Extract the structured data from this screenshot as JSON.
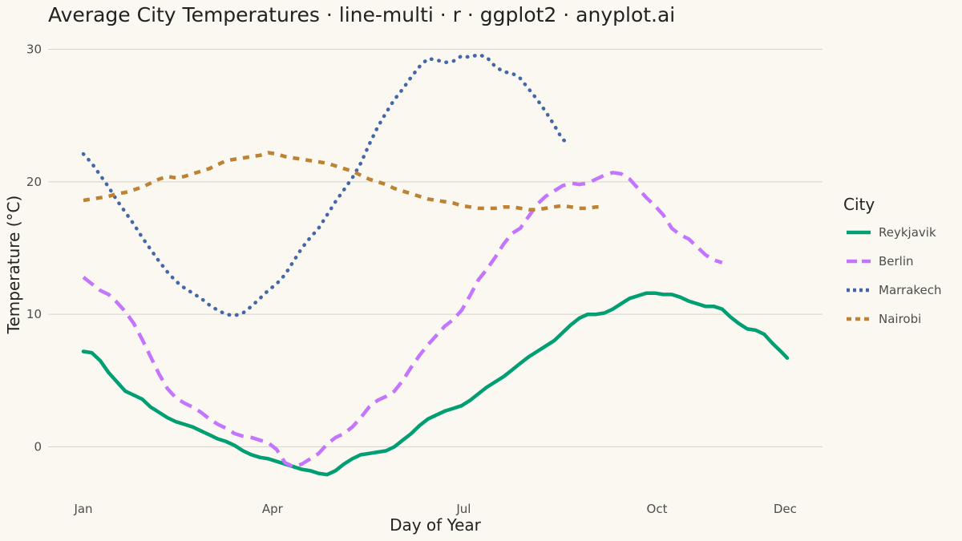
{
  "chart_data": {
    "type": "line",
    "title": "Average City Temperatures · line-multi · r · ggplot2 · anyplot.ai",
    "xlabel": "Day of Year",
    "ylabel": "Temperature (°C)",
    "xlim": [
      1,
      336
    ],
    "ylim": [
      -4,
      30.5
    ],
    "x_ticks": [
      {
        "x": 1,
        "label": "Jan"
      },
      {
        "x": 91,
        "label": "Apr"
      },
      {
        "x": 182,
        "label": "Jul"
      },
      {
        "x": 274,
        "label": "Oct"
      },
      {
        "x": 335,
        "label": "Dec"
      }
    ],
    "y_ticks": [
      0,
      10,
      20,
      30
    ],
    "grid": true,
    "legend": {
      "title": "City",
      "position": "right"
    },
    "series": [
      {
        "name": "Reykjavik",
        "color": "#009E73",
        "dash": "solid",
        "width": 4.5,
        "points": [
          [
            1,
            7.2
          ],
          [
            5,
            7.1
          ],
          [
            9,
            6.5
          ],
          [
            13,
            5.6
          ],
          [
            17,
            4.9
          ],
          [
            21,
            4.2
          ],
          [
            25,
            3.9
          ],
          [
            29,
            3.6
          ],
          [
            33,
            3.0
          ],
          [
            37,
            2.6
          ],
          [
            41,
            2.2
          ],
          [
            45,
            1.9
          ],
          [
            49,
            1.7
          ],
          [
            53,
            1.5
          ],
          [
            57,
            1.2
          ],
          [
            61,
            0.9
          ],
          [
            65,
            0.6
          ],
          [
            69,
            0.4
          ],
          [
            73,
            0.1
          ],
          [
            77,
            -0.3
          ],
          [
            81,
            -0.6
          ],
          [
            85,
            -0.8
          ],
          [
            89,
            -0.9
          ],
          [
            93,
            -1.1
          ],
          [
            97,
            -1.3
          ],
          [
            101,
            -1.5
          ],
          [
            105,
            -1.7
          ],
          [
            109,
            -1.8
          ],
          [
            113,
            -2.0
          ],
          [
            117,
            -2.1
          ],
          [
            121,
            -1.8
          ],
          [
            125,
            -1.3
          ],
          [
            129,
            -0.9
          ],
          [
            133,
            -0.6
          ],
          [
            137,
            -0.5
          ],
          [
            141,
            -0.4
          ],
          [
            145,
            -0.3
          ],
          [
            149,
            0.0
          ],
          [
            153,
            0.5
          ],
          [
            157,
            1.0
          ],
          [
            161,
            1.6
          ],
          [
            165,
            2.1
          ],
          [
            169,
            2.4
          ],
          [
            173,
            2.7
          ],
          [
            177,
            2.9
          ],
          [
            181,
            3.1
          ],
          [
            185,
            3.5
          ],
          [
            189,
            4.0
          ],
          [
            193,
            4.5
          ],
          [
            197,
            4.9
          ],
          [
            201,
            5.3
          ],
          [
            205,
            5.8
          ],
          [
            209,
            6.3
          ],
          [
            213,
            6.8
          ],
          [
            217,
            7.2
          ],
          [
            221,
            7.6
          ],
          [
            225,
            8.0
          ],
          [
            229,
            8.6
          ],
          [
            233,
            9.2
          ],
          [
            237,
            9.7
          ],
          [
            241,
            10.0
          ],
          [
            245,
            10.0
          ],
          [
            249,
            10.1
          ],
          [
            253,
            10.4
          ],
          [
            257,
            10.8
          ],
          [
            261,
            11.2
          ],
          [
            265,
            11.4
          ],
          [
            269,
            11.6
          ],
          [
            273,
            11.6
          ],
          [
            277,
            11.5
          ],
          [
            281,
            11.5
          ],
          [
            285,
            11.3
          ],
          [
            289,
            11.0
          ],
          [
            293,
            10.8
          ],
          [
            297,
            10.6
          ],
          [
            301,
            10.6
          ],
          [
            305,
            10.4
          ],
          [
            309,
            9.8
          ],
          [
            313,
            9.3
          ],
          [
            317,
            8.9
          ],
          [
            321,
            8.8
          ],
          [
            325,
            8.5
          ],
          [
            329,
            7.8
          ],
          [
            333,
            7.2
          ],
          [
            336,
            6.7
          ]
        ]
      },
      {
        "name": "Berlin",
        "color": "#C475FD",
        "dash": "dashed",
        "width": 4.5,
        "points": [
          [
            1,
            12.8
          ],
          [
            5,
            12.3
          ],
          [
            9,
            11.8
          ],
          [
            13,
            11.5
          ],
          [
            17,
            10.9
          ],
          [
            21,
            10.2
          ],
          [
            25,
            9.3
          ],
          [
            29,
            8.1
          ],
          [
            33,
            6.8
          ],
          [
            37,
            5.5
          ],
          [
            41,
            4.4
          ],
          [
            45,
            3.7
          ],
          [
            49,
            3.3
          ],
          [
            53,
            3.0
          ],
          [
            57,
            2.6
          ],
          [
            61,
            2.1
          ],
          [
            65,
            1.7
          ],
          [
            69,
            1.4
          ],
          [
            73,
            1.0
          ],
          [
            77,
            0.8
          ],
          [
            81,
            0.7
          ],
          [
            85,
            0.5
          ],
          [
            89,
            0.3
          ],
          [
            93,
            -0.2
          ],
          [
            97,
            -1.2
          ],
          [
            101,
            -1.5
          ],
          [
            105,
            -1.3
          ],
          [
            109,
            -0.9
          ],
          [
            113,
            -0.5
          ],
          [
            117,
            0.2
          ],
          [
            121,
            0.7
          ],
          [
            125,
            1.0
          ],
          [
            129,
            1.5
          ],
          [
            133,
            2.2
          ],
          [
            137,
            3.0
          ],
          [
            141,
            3.5
          ],
          [
            145,
            3.8
          ],
          [
            149,
            4.2
          ],
          [
            153,
            5.0
          ],
          [
            157,
            6.0
          ],
          [
            161,
            6.9
          ],
          [
            165,
            7.7
          ],
          [
            169,
            8.4
          ],
          [
            173,
            9.1
          ],
          [
            177,
            9.6
          ],
          [
            181,
            10.3
          ],
          [
            185,
            11.4
          ],
          [
            189,
            12.6
          ],
          [
            193,
            13.4
          ],
          [
            197,
            14.3
          ],
          [
            201,
            15.3
          ],
          [
            205,
            16.1
          ],
          [
            209,
            16.5
          ],
          [
            213,
            17.4
          ],
          [
            217,
            18.3
          ],
          [
            221,
            18.9
          ],
          [
            225,
            19.3
          ],
          [
            229,
            19.7
          ],
          [
            233,
            19.9
          ],
          [
            237,
            19.8
          ],
          [
            241,
            19.9
          ],
          [
            245,
            20.2
          ],
          [
            249,
            20.5
          ],
          [
            253,
            20.7
          ],
          [
            257,
            20.6
          ],
          [
            261,
            20.2
          ],
          [
            265,
            19.5
          ],
          [
            269,
            18.8
          ],
          [
            273,
            18.2
          ],
          [
            277,
            17.5
          ],
          [
            281,
            16.5
          ],
          [
            285,
            16.0
          ],
          [
            289,
            15.7
          ],
          [
            293,
            15.1
          ],
          [
            297,
            14.5
          ],
          [
            301,
            14.1
          ],
          [
            305,
            13.9
          ]
        ]
      },
      {
        "name": "Marrakech",
        "color": "#4467A9",
        "dash": "dotted",
        "width": 4.5,
        "points": [
          [
            1,
            22.1
          ],
          [
            5,
            21.4
          ],
          [
            9,
            20.5
          ],
          [
            13,
            19.6
          ],
          [
            17,
            18.6
          ],
          [
            21,
            17.7
          ],
          [
            25,
            16.8
          ],
          [
            29,
            15.8
          ],
          [
            33,
            14.9
          ],
          [
            37,
            14.0
          ],
          [
            41,
            13.2
          ],
          [
            45,
            12.5
          ],
          [
            49,
            12.0
          ],
          [
            53,
            11.6
          ],
          [
            57,
            11.2
          ],
          [
            61,
            10.7
          ],
          [
            65,
            10.3
          ],
          [
            69,
            10.0
          ],
          [
            73,
            9.9
          ],
          [
            77,
            10.1
          ],
          [
            81,
            10.6
          ],
          [
            85,
            11.2
          ],
          [
            89,
            11.8
          ],
          [
            93,
            12.3
          ],
          [
            97,
            13.0
          ],
          [
            101,
            14.0
          ],
          [
            105,
            15.0
          ],
          [
            109,
            15.8
          ],
          [
            113,
            16.5
          ],
          [
            117,
            17.5
          ],
          [
            121,
            18.5
          ],
          [
            125,
            19.4
          ],
          [
            129,
            20.3
          ],
          [
            133,
            21.4
          ],
          [
            137,
            22.8
          ],
          [
            141,
            24.1
          ],
          [
            145,
            25.2
          ],
          [
            149,
            26.2
          ],
          [
            153,
            27.0
          ],
          [
            157,
            27.9
          ],
          [
            161,
            28.7
          ],
          [
            165,
            29.3
          ],
          [
            169,
            29.2
          ],
          [
            173,
            29.0
          ],
          [
            177,
            29.1
          ],
          [
            181,
            29.5
          ],
          [
            185,
            29.4
          ],
          [
            189,
            29.6
          ],
          [
            193,
            29.4
          ],
          [
            197,
            28.7
          ],
          [
            201,
            28.3
          ],
          [
            205,
            28.2
          ],
          [
            209,
            27.8
          ],
          [
            213,
            27.0
          ],
          [
            217,
            26.2
          ],
          [
            221,
            25.3
          ],
          [
            225,
            24.3
          ],
          [
            229,
            23.2
          ],
          [
            232,
            22.9
          ]
        ]
      },
      {
        "name": "Nairobi",
        "color": "#BD8233",
        "dash": "dashed-short",
        "width": 4.5,
        "points": [
          [
            1,
            18.6
          ],
          [
            5,
            18.7
          ],
          [
            9,
            18.8
          ],
          [
            13,
            18.9
          ],
          [
            17,
            19.1
          ],
          [
            21,
            19.2
          ],
          [
            25,
            19.4
          ],
          [
            29,
            19.6
          ],
          [
            33,
            19.9
          ],
          [
            37,
            20.2
          ],
          [
            41,
            20.4
          ],
          [
            45,
            20.3
          ],
          [
            49,
            20.4
          ],
          [
            53,
            20.6
          ],
          [
            57,
            20.8
          ],
          [
            61,
            21.0
          ],
          [
            65,
            21.3
          ],
          [
            69,
            21.6
          ],
          [
            73,
            21.7
          ],
          [
            77,
            21.8
          ],
          [
            81,
            21.9
          ],
          [
            85,
            22.0
          ],
          [
            89,
            22.2
          ],
          [
            93,
            22.1
          ],
          [
            97,
            21.9
          ],
          [
            101,
            21.8
          ],
          [
            105,
            21.7
          ],
          [
            109,
            21.6
          ],
          [
            113,
            21.5
          ],
          [
            117,
            21.4
          ],
          [
            121,
            21.2
          ],
          [
            125,
            21.0
          ],
          [
            129,
            20.8
          ],
          [
            133,
            20.5
          ],
          [
            137,
            20.2
          ],
          [
            141,
            20.0
          ],
          [
            145,
            19.8
          ],
          [
            149,
            19.5
          ],
          [
            153,
            19.3
          ],
          [
            157,
            19.1
          ],
          [
            161,
            18.9
          ],
          [
            165,
            18.7
          ],
          [
            169,
            18.6
          ],
          [
            173,
            18.5
          ],
          [
            177,
            18.4
          ],
          [
            181,
            18.2
          ],
          [
            185,
            18.1
          ],
          [
            189,
            18.0
          ],
          [
            193,
            18.0
          ],
          [
            197,
            18.0
          ],
          [
            201,
            18.1
          ],
          [
            205,
            18.1
          ],
          [
            209,
            18.0
          ],
          [
            213,
            17.9
          ],
          [
            217,
            17.9
          ],
          [
            221,
            18.0
          ],
          [
            225,
            18.1
          ],
          [
            229,
            18.2
          ],
          [
            233,
            18.1
          ],
          [
            237,
            18.0
          ],
          [
            241,
            18.0
          ],
          [
            245,
            18.1
          ],
          [
            249,
            18.1
          ]
        ]
      }
    ]
  }
}
